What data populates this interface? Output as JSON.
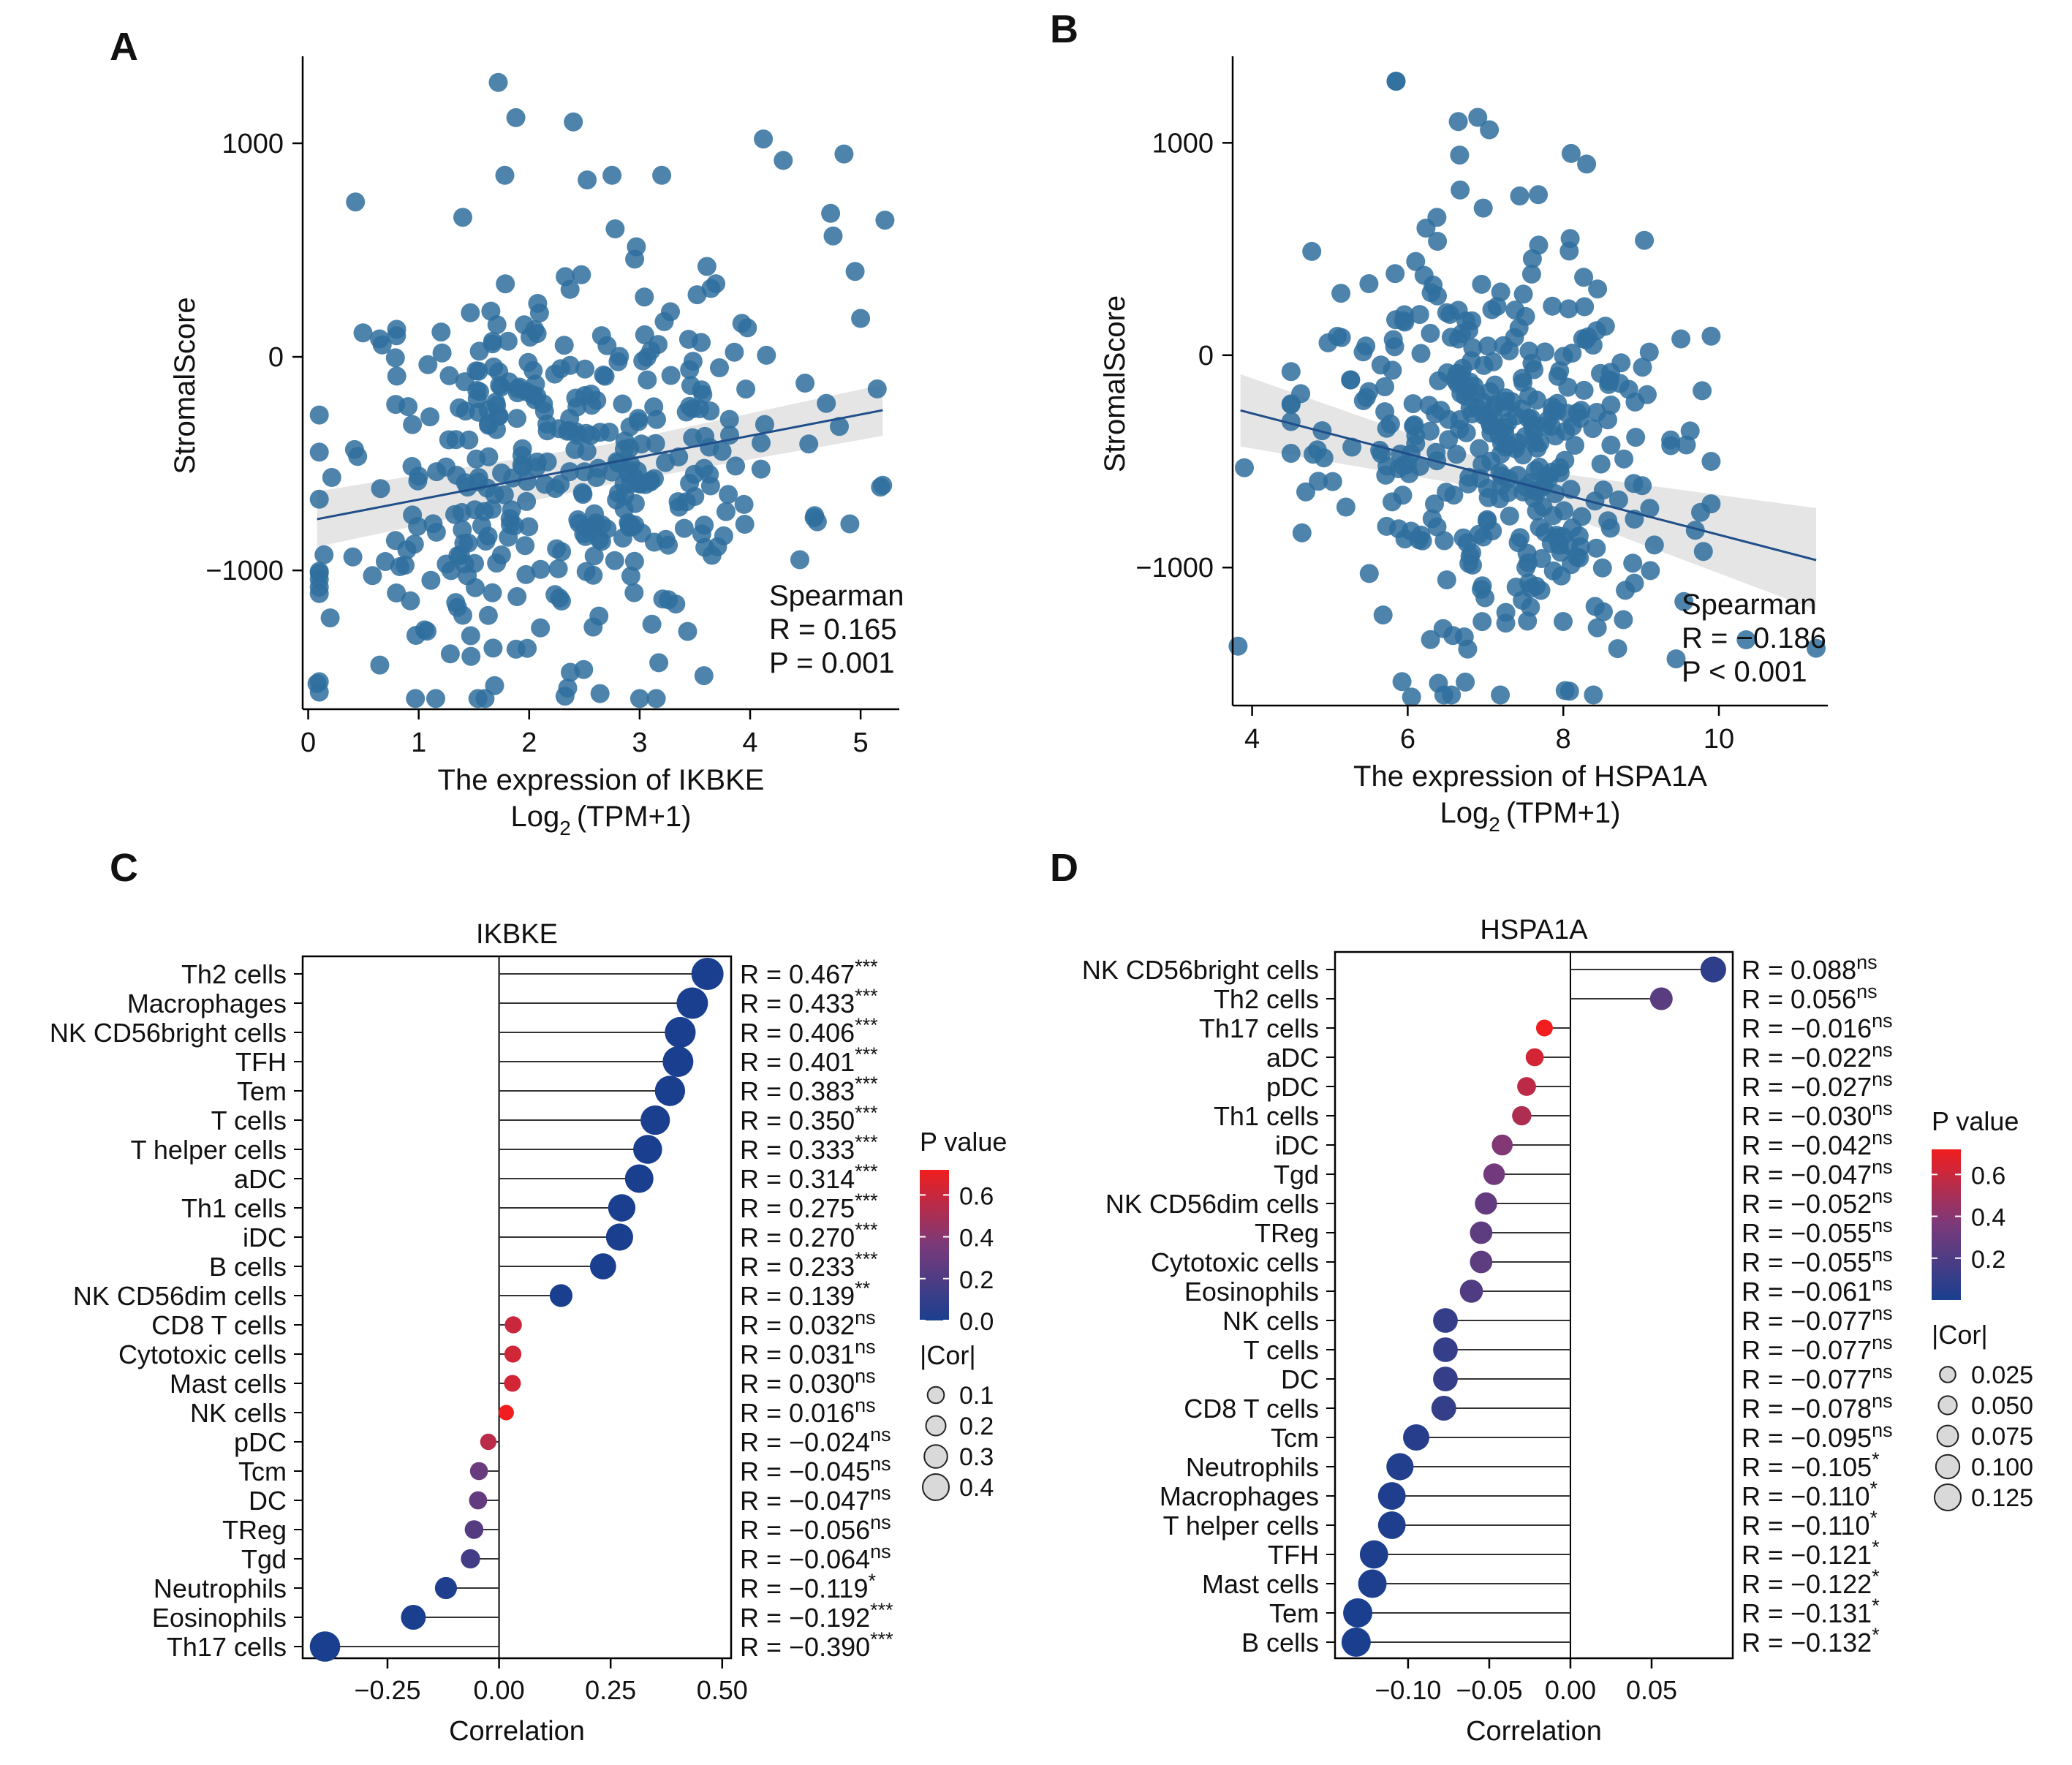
{
  "colors": {
    "scatter_point": "#2F6E9E",
    "fit_line": "#1F4E89",
    "ci_band": "#D3D3D3",
    "pvalue_low": "#1A3F8F",
    "pvalue_mid": "#7A3A7A",
    "pvalue_high": "#F01E1E",
    "axis": "#000000"
  },
  "chart_data": [
    {
      "id": "A",
      "type": "scatter",
      "panel_label": "A",
      "xlabel": "The  expression  of  IKBKE",
      "xlabel_unit_prefix": "Log",
      "xlabel_unit_sub": "2",
      "xlabel_unit_suffix": "(TPM+1)",
      "ylabel": "StromalScore",
      "xlim": [
        -0.05,
        5.35
      ],
      "ylim": [
        -1650,
        1380
      ],
      "xticks": [
        0,
        1,
        2,
        3,
        4,
        5
      ],
      "yticks": [
        1000,
        0,
        -1000
      ],
      "ytick_labels": [
        "1000",
        "0",
        "−1000"
      ],
      "fit": {
        "x": [
          0.08,
          5.2
        ],
        "y": [
          -760,
          -250
        ]
      },
      "ci_band": {
        "x": [
          0.08,
          2.7,
          5.2
        ],
        "upper": [
          -630,
          -410,
          -130
        ],
        "lower": [
          -890,
          -600,
          -370
        ]
      },
      "stats": [
        "Spearman",
        "R = 0.165",
        "P = 0.001"
      ],
      "seed": 11,
      "n_points": 380,
      "extra_points": [
        [
          1.72,
          1285
        ],
        [
          1.88,
          1120
        ],
        [
          2.4,
          1100
        ],
        [
          4.12,
          1020
        ],
        [
          4.3,
          920
        ],
        [
          4.85,
          950
        ],
        [
          5.22,
          640
        ],
        [
          2.75,
          850
        ],
        [
          3.2,
          850
        ],
        [
          1.78,
          850
        ],
        [
          0.08,
          -1530
        ],
        [
          0.1,
          -1570
        ],
        [
          3.0,
          -1600
        ],
        [
          3.15,
          -1600
        ],
        [
          4.45,
          -950
        ],
        [
          5.18,
          -610
        ],
        [
          5.15,
          -150
        ],
        [
          4.95,
          400
        ],
        [
          5.0,
          180
        ]
      ]
    },
    {
      "id": "B",
      "type": "scatter",
      "panel_label": "B",
      "xlabel": "The  expression  of  HSPA1A",
      "xlabel_unit_prefix": "Log",
      "xlabel_unit_sub": "2",
      "xlabel_unit_suffix": "(TPM+1)",
      "ylabel": "StromalScore",
      "xlim": [
        3.75,
        11.4
      ],
      "ylim": [
        -1650,
        1380
      ],
      "xticks": [
        4,
        6,
        8,
        10
      ],
      "yticks": [
        1000,
        0,
        -1000
      ],
      "ytick_labels": [
        "1000",
        "0",
        "−1000"
      ],
      "fit": {
        "x": [
          3.85,
          11.25
        ],
        "y": [
          -260,
          -965
        ]
      },
      "ci_band": {
        "x": [
          3.85,
          7.2,
          11.25
        ],
        "upper": [
          -90,
          -520,
          -720
        ],
        "lower": [
          -430,
          -640,
          -1200
        ]
      },
      "stats": [
        "Spearman",
        "R = −0.186",
        "P < 0.001"
      ],
      "seed": 23,
      "n_points": 380,
      "extra_points": [
        [
          5.85,
          1290
        ],
        [
          6.65,
          1100
        ],
        [
          6.9,
          1120
        ],
        [
          8.1,
          950
        ],
        [
          8.3,
          900
        ],
        [
          3.82,
          -1370
        ],
        [
          3.9,
          -530
        ],
        [
          9.55,
          -1160
        ],
        [
          10.35,
          -1340
        ],
        [
          11.25,
          -1380
        ],
        [
          9.9,
          90
        ],
        [
          9.9,
          -500
        ],
        [
          9.45,
          -1430
        ],
        [
          9.9,
          -700
        ],
        [
          6.05,
          -1610
        ],
        [
          5.85,
          1290
        ]
      ]
    },
    {
      "id": "C",
      "type": "lollipop",
      "panel_label": "C",
      "title": "IKBKE",
      "xlabel": "Correlation",
      "xlim": [
        -0.44,
        0.52
      ],
      "xticks": [
        -0.25,
        0.0,
        0.25,
        0.5
      ],
      "xtick_labels": [
        "−0.25",
        "0.00",
        "0.25",
        "0.50"
      ],
      "cells": [
        "Th2 cells",
        "Macrophages",
        "NK CD56bright cells",
        "TFH",
        "Tem",
        "T cells",
        "T helper cells",
        "aDC",
        "Th1 cells",
        "iDC",
        "B cells",
        "NK CD56dim cells",
        "CD8 T cells",
        "Cytotoxic cells",
        "Mast cells",
        "NK cells",
        "pDC",
        "Tcm",
        "DC",
        "TReg",
        "Tgd",
        "Neutrophils",
        "Eosinophils",
        "Th17 cells"
      ],
      "values": [
        0.467,
        0.433,
        0.406,
        0.401,
        0.383,
        0.35,
        0.333,
        0.314,
        0.275,
        0.27,
        0.233,
        0.139,
        0.032,
        0.031,
        0.03,
        0.016,
        -0.024,
        -0.045,
        -0.047,
        -0.056,
        -0.064,
        -0.119,
        -0.192,
        -0.39
      ],
      "r_labels": [
        "R = 0.467",
        "R = 0.433",
        "R = 0.406",
        "R = 0.401",
        "R = 0.383",
        "R = 0.350",
        "R = 0.333",
        "R = 0.314",
        "R = 0.275",
        "R = 0.270",
        "R = 0.233",
        "R = 0.139",
        "R = 0.032",
        "R = 0.031",
        "R = 0.030",
        "R = 0.016",
        "R = −0.024",
        "R = −0.045",
        "R = −0.047",
        "R = −0.056",
        "R = −0.064",
        "R = −0.119",
        "R = −0.192",
        "R = −0.390"
      ],
      "sig": [
        "***",
        "***",
        "***",
        "***",
        "***",
        "***",
        "***",
        "***",
        "***",
        "***",
        "***",
        "**",
        "ns",
        "ns",
        "ns",
        "ns",
        "ns",
        "ns",
        "ns",
        "ns",
        "ns",
        "*",
        "***",
        "***"
      ],
      "pvalues": [
        0,
        0,
        0,
        0,
        0,
        0,
        0,
        0,
        0,
        0,
        0,
        0.001,
        0.6,
        0.62,
        0.63,
        0.72,
        0.55,
        0.3,
        0.28,
        0.22,
        0.15,
        0.01,
        0.0,
        0.0
      ],
      "pvalue_legend": {
        "title": "P value",
        "min": 0.0,
        "max": 0.72,
        "ticks": [
          0.6,
          0.4,
          0.2,
          0.0
        ],
        "tick_labels": [
          "0.6",
          "0.4",
          "0.2",
          "0.0"
        ]
      },
      "cor_legend": {
        "title": "|Cor|",
        "values": [
          0.1,
          0.2,
          0.3,
          0.4
        ],
        "labels": [
          "0.1",
          "0.2",
          "0.3",
          "0.4"
        ]
      }
    },
    {
      "id": "D",
      "type": "lollipop",
      "panel_label": "D",
      "title": "HSPA1A",
      "xlabel": "Correlation",
      "xlim": [
        -0.145,
        0.1
      ],
      "xticks": [
        -0.1,
        -0.05,
        0.0,
        0.05
      ],
      "xtick_labels": [
        "−0.10",
        "−0.05",
        "0.00",
        "0.05"
      ],
      "cells": [
        "NK CD56bright cells",
        "Th2 cells",
        "Th17 cells",
        "aDC",
        "pDC",
        "Th1 cells",
        "iDC",
        "Tgd",
        "NK CD56dim cells",
        "TReg",
        "Cytotoxic cells",
        "Eosinophils",
        "NK cells",
        "T cells",
        "DC",
        "CD8 T cells",
        "Tcm",
        "Neutrophils",
        "Macrophages",
        "T helper cells",
        "TFH",
        "Mast cells",
        "Tem",
        "B cells"
      ],
      "values": [
        0.088,
        0.056,
        -0.016,
        -0.022,
        -0.027,
        -0.03,
        -0.042,
        -0.047,
        -0.052,
        -0.055,
        -0.055,
        -0.061,
        -0.077,
        -0.077,
        -0.077,
        -0.078,
        -0.095,
        -0.105,
        -0.11,
        -0.11,
        -0.121,
        -0.122,
        -0.131,
        -0.132
      ],
      "r_labels": [
        "R = 0.088",
        "R = 0.056",
        "R = −0.016",
        "R = −0.022",
        "R = −0.027",
        "R = −0.030",
        "R = −0.042",
        "R = −0.047",
        "R = −0.052",
        "R = −0.055",
        "R = −0.055",
        "R = −0.061",
        "R = −0.077",
        "R = −0.077",
        "R = −0.077",
        "R = −0.078",
        "R = −0.095",
        "R = −0.105",
        "R = −0.110",
        "R = −0.110",
        "R = −0.121",
        "R = −0.122",
        "R = −0.131",
        "R = −0.132"
      ],
      "sig": [
        "ns",
        "ns",
        "ns",
        "ns",
        "ns",
        "ns",
        "ns",
        "ns",
        "ns",
        "ns",
        "ns",
        "ns",
        "ns",
        "ns",
        "ns",
        "ns",
        "ns",
        "*",
        "*",
        "*",
        "*",
        "*",
        "*",
        "*"
      ],
      "pvalues": [
        0.08,
        0.24,
        0.72,
        0.63,
        0.56,
        0.52,
        0.38,
        0.33,
        0.28,
        0.25,
        0.25,
        0.2,
        0.1,
        0.1,
        0.1,
        0.1,
        0.05,
        0.03,
        0.02,
        0.02,
        0.01,
        0.01,
        0.005,
        0.005
      ],
      "pvalue_legend": {
        "title": "P value",
        "min": 0.0,
        "max": 0.72,
        "ticks": [
          0.6,
          0.4,
          0.2
        ],
        "tick_labels": [
          "0.6",
          "0.4",
          "0.2"
        ]
      },
      "cor_legend": {
        "title": "|Cor|",
        "values": [
          0.025,
          0.05,
          0.075,
          0.1,
          0.125
        ],
        "labels": [
          "0.025",
          "0.050",
          "0.075",
          "0.100",
          "0.125"
        ]
      }
    }
  ]
}
